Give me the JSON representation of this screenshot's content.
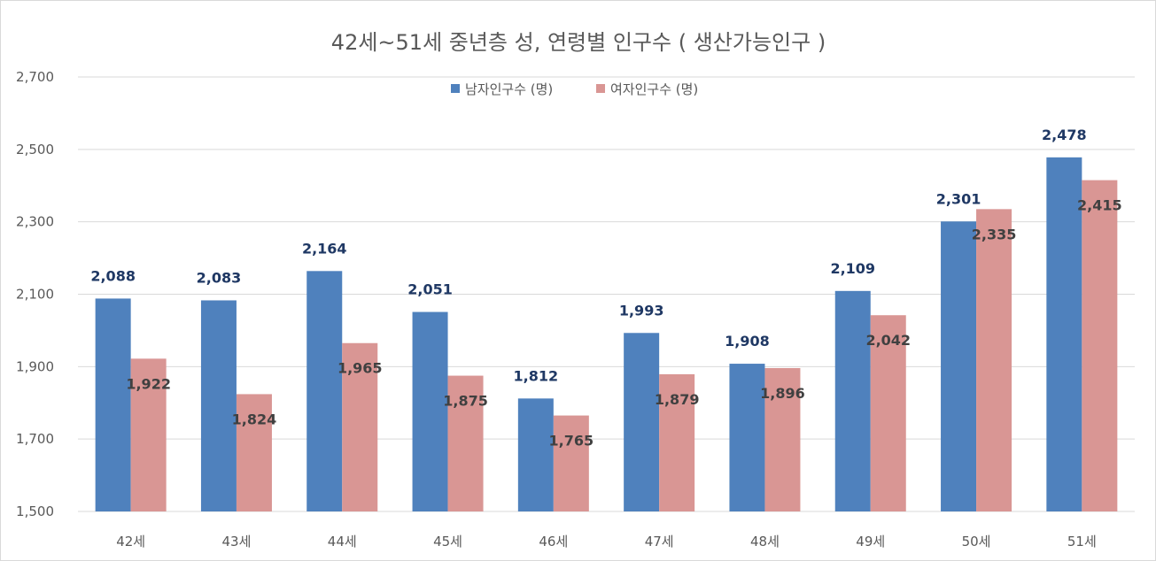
{
  "chart_data": {
    "type": "bar",
    "title": "42세~51세 중년층 성, 연령별 인구수 ( 생산가능인구 )",
    "categories": [
      "42세",
      "43세",
      "44세",
      "45세",
      "46세",
      "47세",
      "48세",
      "49세",
      "50세",
      "51세"
    ],
    "series": [
      {
        "name": "남자인구수 (명)",
        "color": "#4f81bd",
        "values": [
          2088,
          2083,
          2164,
          2051,
          1812,
          1993,
          1908,
          2109,
          2301,
          2478
        ]
      },
      {
        "name": "여자인구수 (명)",
        "color": "#d99694",
        "values": [
          1922,
          1824,
          1965,
          1875,
          1765,
          1879,
          1896,
          2042,
          2335,
          2415
        ]
      }
    ],
    "ylim": [
      1500,
      2700
    ],
    "yticks": [
      "1,500",
      "1,700",
      "1,900",
      "2,100",
      "2,300",
      "2,500",
      "2,700"
    ],
    "grid": true,
    "legend_position": "top-center"
  }
}
